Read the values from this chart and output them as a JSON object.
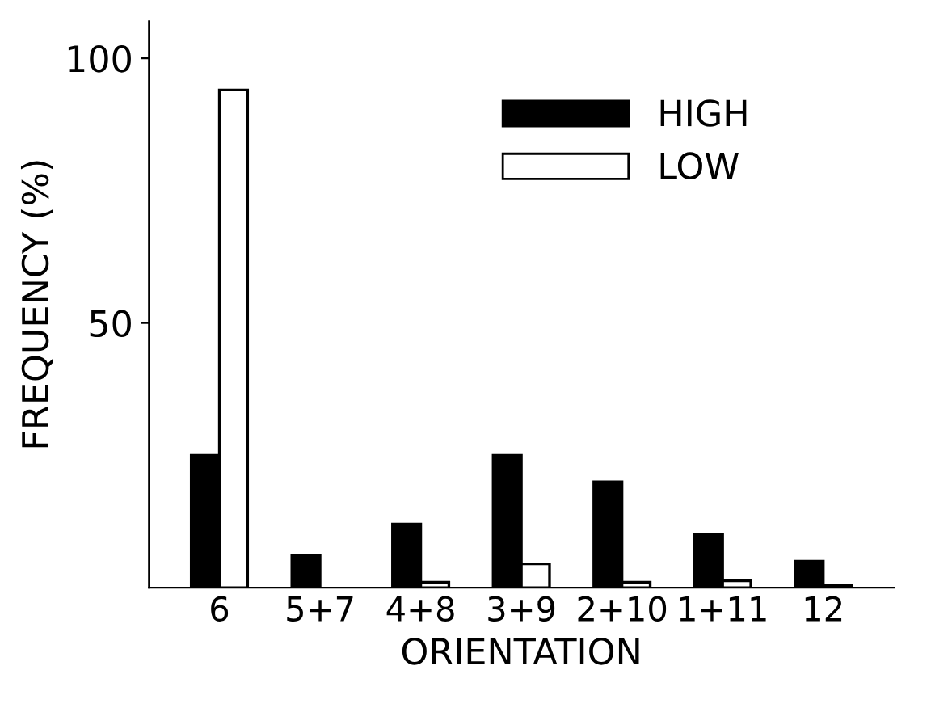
{
  "chart_data": {
    "type": "bar",
    "xlabel": "ORIENTATION",
    "ylabel": "FREQUENCY (%)",
    "categories": [
      "6",
      "5+7",
      "4+8",
      "3+9",
      "2+10",
      "1+11",
      "12"
    ],
    "series": [
      {
        "name": "HIGH",
        "color": "#000000",
        "values": [
          25,
          6,
          12,
          25,
          20,
          10,
          5
        ]
      },
      {
        "name": "LOW",
        "color": "#ffffff",
        "values": [
          94,
          null,
          1,
          4.5,
          1,
          1.3,
          0.5
        ]
      }
    ],
    "ylim": [
      0,
      107
    ],
    "yticks": [
      50,
      100
    ],
    "legend": "top right",
    "grid": false
  }
}
